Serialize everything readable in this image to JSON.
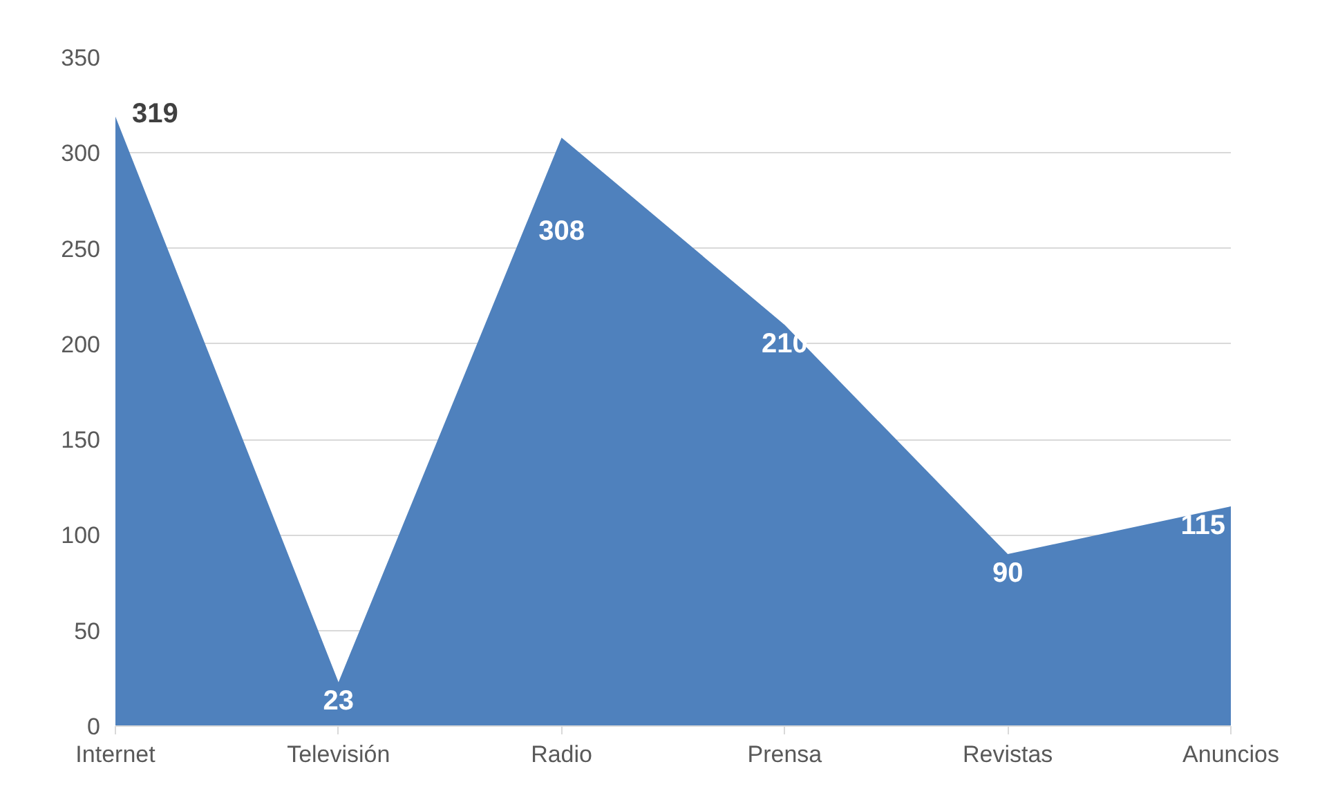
{
  "chart_data": {
    "type": "area",
    "categories": [
      "Internet",
      "Televisión",
      "Radio",
      "Prensa",
      "Revistas",
      "Anuncios"
    ],
    "series": [
      {
        "color": "#4f81bd",
        "values": [
          319,
          23,
          308,
          210,
          90,
          115
        ]
      }
    ],
    "ylim": [
      0,
      350
    ],
    "yticks": [
      0,
      50,
      100,
      150,
      200,
      250,
      300,
      350
    ],
    "grid": "y",
    "data_labels": true
  }
}
